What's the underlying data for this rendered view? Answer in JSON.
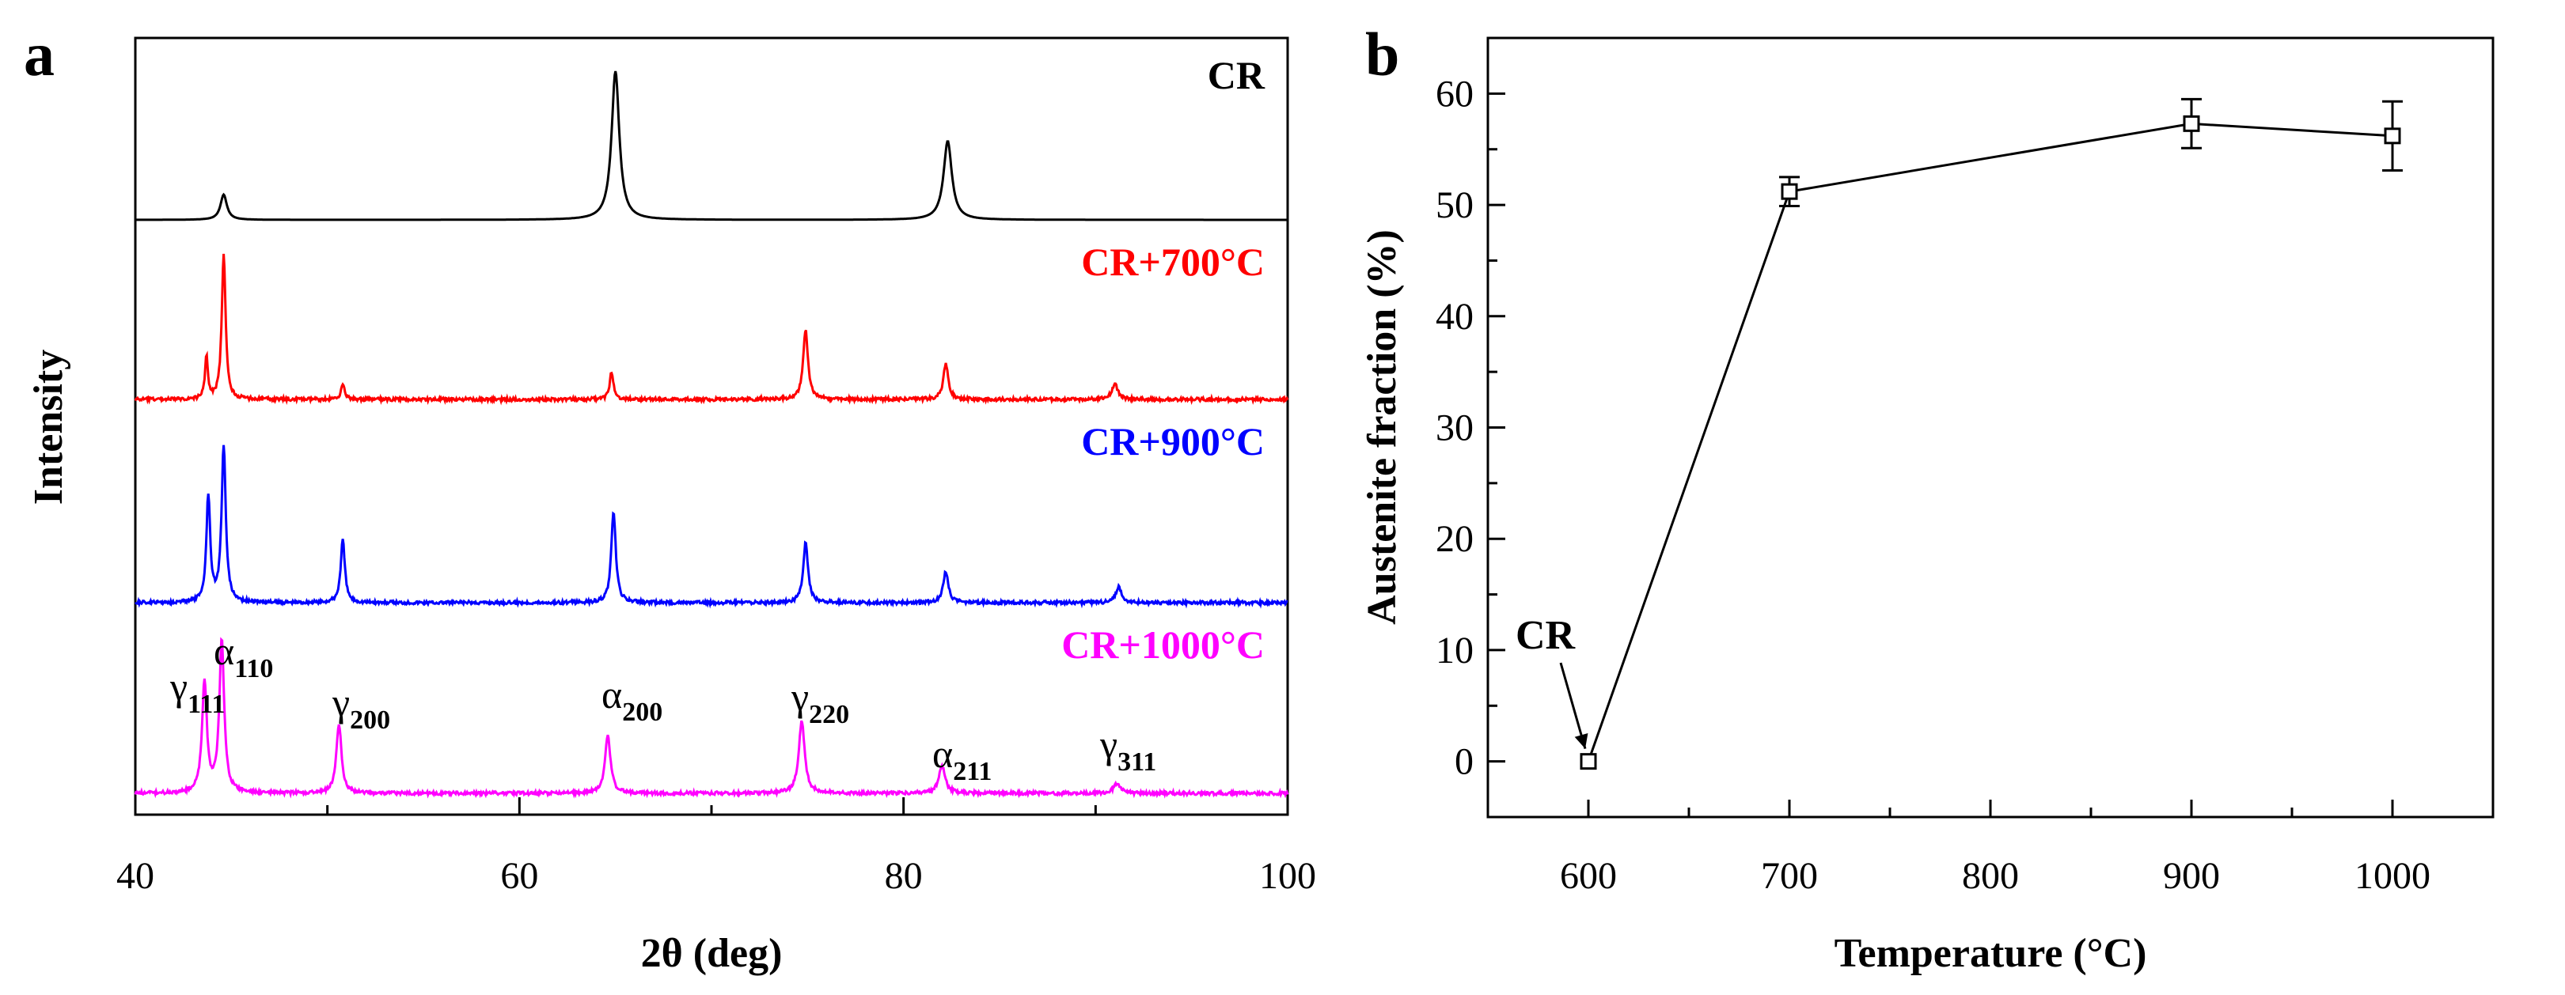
{
  "chart_data": [
    {
      "type": "line",
      "panel_label": "a",
      "title": "",
      "xlabel": "2θ (deg)",
      "ylabel": "Intensity",
      "xlim": [
        40,
        100
      ],
      "xticks": [
        40,
        60,
        80,
        100
      ],
      "yticks": [],
      "grid": false,
      "series": [
        {
          "name": "CR",
          "color": "#000000",
          "peaks": [
            [
              44.6,
              0.17,
              0.2
            ],
            [
              65.0,
              1.0,
              0.24
            ],
            [
              82.3,
              0.53,
              0.26
            ]
          ]
        },
        {
          "name": "CR+700°C",
          "color": "#ff0000",
          "peaks": [
            [
              43.7,
              0.3,
              0.09
            ],
            [
              44.6,
              1.0,
              0.12
            ],
            [
              50.8,
              0.11,
              0.11
            ],
            [
              64.8,
              0.19,
              0.12
            ],
            [
              74.9,
              0.48,
              0.15
            ],
            [
              82.2,
              0.25,
              0.15
            ],
            [
              91.0,
              0.11,
              0.18
            ]
          ]
        },
        {
          "name": "CR+900°C",
          "color": "#0000ff",
          "peaks": [
            [
              43.8,
              0.68,
              0.12
            ],
            [
              44.6,
              1.0,
              0.13
            ],
            [
              50.8,
              0.4,
              0.13
            ],
            [
              64.9,
              0.58,
              0.14
            ],
            [
              74.9,
              0.38,
              0.15
            ],
            [
              82.2,
              0.2,
              0.16
            ],
            [
              91.2,
              0.1,
              0.18
            ]
          ]
        },
        {
          "name": "CR+1000°C",
          "color": "#ff00ff",
          "peaks": [
            [
              43.6,
              0.73,
              0.15
            ],
            [
              44.5,
              1.0,
              0.15
            ],
            [
              50.6,
              0.46,
              0.16
            ],
            [
              64.6,
              0.38,
              0.17
            ],
            [
              74.7,
              0.48,
              0.18
            ],
            [
              82.0,
              0.18,
              0.2
            ],
            [
              91.1,
              0.06,
              0.22
            ]
          ]
        }
      ],
      "peak_labels": [
        {
          "base": "γ",
          "sub": "111",
          "x": 43.6
        },
        {
          "base": "α",
          "sub": "110",
          "x": 44.5
        },
        {
          "base": "γ",
          "sub": "200",
          "x": 50.6
        },
        {
          "base": "α",
          "sub": "200",
          "x": 64.6
        },
        {
          "base": "γ",
          "sub": "220",
          "x": 74.7
        },
        {
          "base": "α",
          "sub": "211",
          "x": 82.0
        },
        {
          "base": "γ",
          "sub": "311",
          "x": 91.1
        }
      ]
    },
    {
      "type": "line",
      "panel_label": "b",
      "title": "",
      "xlabel": "Temperature (°C)",
      "ylabel": "Austenite fraction (%)",
      "xlim": [
        550,
        1050
      ],
      "ylim": [
        -5,
        65
      ],
      "xticks": [
        600,
        700,
        800,
        900,
        1000
      ],
      "yticks": [
        0,
        10,
        20,
        30,
        40,
        50,
        60
      ],
      "grid": false,
      "x": [
        600,
        700,
        900,
        1000
      ],
      "y": [
        0,
        51.2,
        57.3,
        56.2
      ],
      "yerr": [
        0,
        1.3,
        2.2,
        3.1
      ],
      "marker": "open-square",
      "annotation": {
        "text": "CR",
        "x": 600,
        "y": 0
      }
    }
  ]
}
